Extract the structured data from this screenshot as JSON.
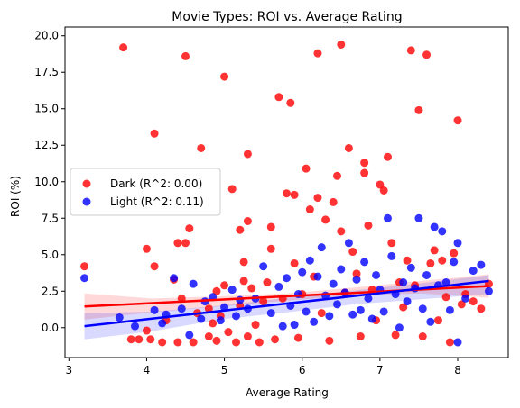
{
  "chart_data": {
    "type": "scatter",
    "title": "Movie Types: ROI vs. Average Rating",
    "xlabel": "Average Rating",
    "ylabel": "ROI (%)",
    "xlim": [
      2.95,
      8.65
    ],
    "ylim": [
      -2.05,
      20.6
    ],
    "xticks": [
      3,
      4,
      5,
      6,
      7,
      8
    ],
    "yticks": [
      0.0,
      2.5,
      5.0,
      7.5,
      10.0,
      12.5,
      15.0,
      17.5,
      20.0
    ],
    "ytick_labels": [
      "0.0",
      "2.5",
      "5.0",
      "7.5",
      "10.0",
      "12.5",
      "15.0",
      "17.5",
      "20.0"
    ],
    "grid": false,
    "legend_position": "center-left",
    "series": [
      {
        "name": "Dark (R^2: 0.00)",
        "color": "#ff0000",
        "trend": {
          "x": [
            3.2,
            8.4
          ],
          "y": [
            1.45,
            2.85
          ]
        },
        "band_upper": [
          2.35,
          2.0,
          2.15,
          2.35,
          2.75,
          3.2,
          3.65
        ],
        "band_lower": [
          0.55,
          1.05,
          1.45,
          1.85,
          2.2,
          2.35,
          2.05
        ],
        "points": [
          [
            3.2,
            4.2
          ],
          [
            3.7,
            19.2
          ],
          [
            3.8,
            -0.8
          ],
          [
            3.9,
            -0.8
          ],
          [
            4.0,
            -0.2
          ],
          [
            4.0,
            5.4
          ],
          [
            4.05,
            -0.8
          ],
          [
            4.1,
            4.2
          ],
          [
            4.1,
            13.3
          ],
          [
            4.2,
            -1.0
          ],
          [
            4.25,
            0.5
          ],
          [
            4.35,
            3.3
          ],
          [
            4.4,
            -1.0
          ],
          [
            4.4,
            5.8
          ],
          [
            4.45,
            2.0
          ],
          [
            4.5,
            5.8
          ],
          [
            4.5,
            18.6
          ],
          [
            4.55,
            6.8
          ],
          [
            4.6,
            -1.0
          ],
          [
            4.65,
            1.0
          ],
          [
            4.7,
            12.3
          ],
          [
            4.8,
            -0.6
          ],
          [
            4.8,
            1.3
          ],
          [
            4.85,
            0.3
          ],
          [
            4.9,
            -0.9
          ],
          [
            4.9,
            2.5
          ],
          [
            4.95,
            0.8
          ],
          [
            5.0,
            17.2
          ],
          [
            5.0,
            2.9
          ],
          [
            5.05,
            -0.3
          ],
          [
            5.1,
            9.5
          ],
          [
            5.15,
            -1.0
          ],
          [
            5.2,
            1.5
          ],
          [
            5.2,
            6.7
          ],
          [
            5.25,
            4.5
          ],
          [
            5.25,
            3.2
          ],
          [
            5.3,
            -0.6
          ],
          [
            5.3,
            11.9
          ],
          [
            5.3,
            7.3
          ],
          [
            5.35,
            2.7
          ],
          [
            5.4,
            0.2
          ],
          [
            5.45,
            -1.0
          ],
          [
            5.5,
            1.8
          ],
          [
            5.55,
            3.1
          ],
          [
            5.6,
            6.9
          ],
          [
            5.6,
            5.4
          ],
          [
            5.65,
            -0.8
          ],
          [
            5.7,
            15.8
          ],
          [
            5.75,
            2.0
          ],
          [
            5.8,
            9.2
          ],
          [
            5.85,
            15.4
          ],
          [
            5.9,
            9.1
          ],
          [
            5.9,
            4.4
          ],
          [
            5.95,
            -0.7
          ],
          [
            6.0,
            2.3
          ],
          [
            6.05,
            10.9
          ],
          [
            6.1,
            8.1
          ],
          [
            6.15,
            3.5
          ],
          [
            6.2,
            18.8
          ],
          [
            6.2,
            8.9
          ],
          [
            6.25,
            1.0
          ],
          [
            6.3,
            7.4
          ],
          [
            6.35,
            -0.9
          ],
          [
            6.4,
            8.6
          ],
          [
            6.45,
            10.4
          ],
          [
            6.5,
            19.4
          ],
          [
            6.5,
            6.6
          ],
          [
            6.55,
            2.4
          ],
          [
            6.6,
            12.3
          ],
          [
            6.65,
            5.2
          ],
          [
            6.7,
            3.7
          ],
          [
            6.75,
            -0.6
          ],
          [
            6.8,
            11.3
          ],
          [
            6.8,
            10.6
          ],
          [
            6.85,
            7.0
          ],
          [
            6.9,
            2.6
          ],
          [
            6.95,
            0.5
          ],
          [
            7.0,
            9.8
          ],
          [
            7.05,
            9.4
          ],
          [
            7.1,
            11.7
          ],
          [
            7.15,
            5.8
          ],
          [
            7.2,
            -0.5
          ],
          [
            7.25,
            3.1
          ],
          [
            7.3,
            1.4
          ],
          [
            7.35,
            4.6
          ],
          [
            7.4,
            19.0
          ],
          [
            7.45,
            2.9
          ],
          [
            7.5,
            14.9
          ],
          [
            7.55,
            -0.6
          ],
          [
            7.6,
            18.7
          ],
          [
            7.65,
            4.4
          ],
          [
            7.7,
            5.3
          ],
          [
            7.75,
            0.5
          ],
          [
            7.8,
            4.6
          ],
          [
            7.85,
            2.1
          ],
          [
            7.9,
            -1.0
          ],
          [
            7.95,
            5.1
          ],
          [
            8.0,
            14.2
          ],
          [
            8.05,
            1.6
          ],
          [
            8.1,
            2.3
          ],
          [
            8.2,
            1.8
          ],
          [
            8.3,
            1.3
          ],
          [
            8.4,
            3.0
          ]
        ]
      },
      {
        "name": "Light (R^2: 0.11)",
        "color": "#0000ff",
        "trend": {
          "x": [
            3.2,
            8.4
          ],
          "y": [
            0.1,
            3.2
          ]
        },
        "band_upper": [
          1.0,
          1.1,
          1.5,
          2.05,
          2.55,
          3.05,
          3.6
        ],
        "band_lower": [
          -0.8,
          -0.25,
          0.55,
          1.05,
          1.6,
          1.95,
          2.3
        ],
        "points": [
          [
            3.2,
            3.4
          ],
          [
            3.65,
            0.7
          ],
          [
            3.85,
            0.1
          ],
          [
            4.1,
            1.2
          ],
          [
            4.2,
            0.3
          ],
          [
            4.25,
            0.9
          ],
          [
            4.35,
            3.4
          ],
          [
            4.45,
            1.3
          ],
          [
            4.55,
            -0.5
          ],
          [
            4.6,
            3.0
          ],
          [
            4.7,
            0.6
          ],
          [
            4.75,
            1.8
          ],
          [
            4.85,
            2.1
          ],
          [
            4.95,
            0.5
          ],
          [
            5.0,
            1.4
          ],
          [
            5.1,
            2.6
          ],
          [
            5.15,
            0.8
          ],
          [
            5.2,
            1.9
          ],
          [
            5.3,
            1.3
          ],
          [
            5.4,
            2.0
          ],
          [
            5.5,
            4.2
          ],
          [
            5.6,
            1.0
          ],
          [
            5.7,
            2.8
          ],
          [
            5.75,
            0.1
          ],
          [
            5.8,
            3.4
          ],
          [
            5.85,
            1.5
          ],
          [
            5.9,
            0.2
          ],
          [
            5.95,
            2.3
          ],
          [
            6.0,
            3.8
          ],
          [
            6.05,
            1.1
          ],
          [
            6.1,
            4.6
          ],
          [
            6.15,
            0.4
          ],
          [
            6.2,
            3.5
          ],
          [
            6.25,
            5.5
          ],
          [
            6.3,
            2.2
          ],
          [
            6.35,
            0.8
          ],
          [
            6.4,
            3.0
          ],
          [
            6.45,
            1.6
          ],
          [
            6.5,
            4.0
          ],
          [
            6.55,
            2.4
          ],
          [
            6.6,
            5.8
          ],
          [
            6.65,
            0.9
          ],
          [
            6.7,
            3.3
          ],
          [
            6.75,
            1.2
          ],
          [
            6.8,
            4.5
          ],
          [
            6.85,
            2.0
          ],
          [
            6.9,
            0.6
          ],
          [
            6.95,
            3.6
          ],
          [
            7.0,
            2.6
          ],
          [
            7.05,
            1.1
          ],
          [
            7.1,
            7.5
          ],
          [
            7.15,
            4.9
          ],
          [
            7.2,
            2.3
          ],
          [
            7.25,
            0.0
          ],
          [
            7.3,
            3.1
          ],
          [
            7.35,
            1.8
          ],
          [
            7.4,
            4.1
          ],
          [
            7.45,
            2.7
          ],
          [
            7.5,
            7.5
          ],
          [
            7.55,
            1.3
          ],
          [
            7.6,
            3.6
          ],
          [
            7.65,
            0.4
          ],
          [
            7.7,
            6.9
          ],
          [
            7.75,
            2.9
          ],
          [
            7.8,
            6.6
          ],
          [
            7.85,
            3.1
          ],
          [
            7.9,
            1.2
          ],
          [
            7.95,
            4.5
          ],
          [
            8.0,
            5.8
          ],
          [
            8.0,
            -1.0
          ],
          [
            8.1,
            2.0
          ],
          [
            8.2,
            3.9
          ],
          [
            8.3,
            4.3
          ],
          [
            8.4,
            2.5
          ]
        ]
      }
    ]
  }
}
